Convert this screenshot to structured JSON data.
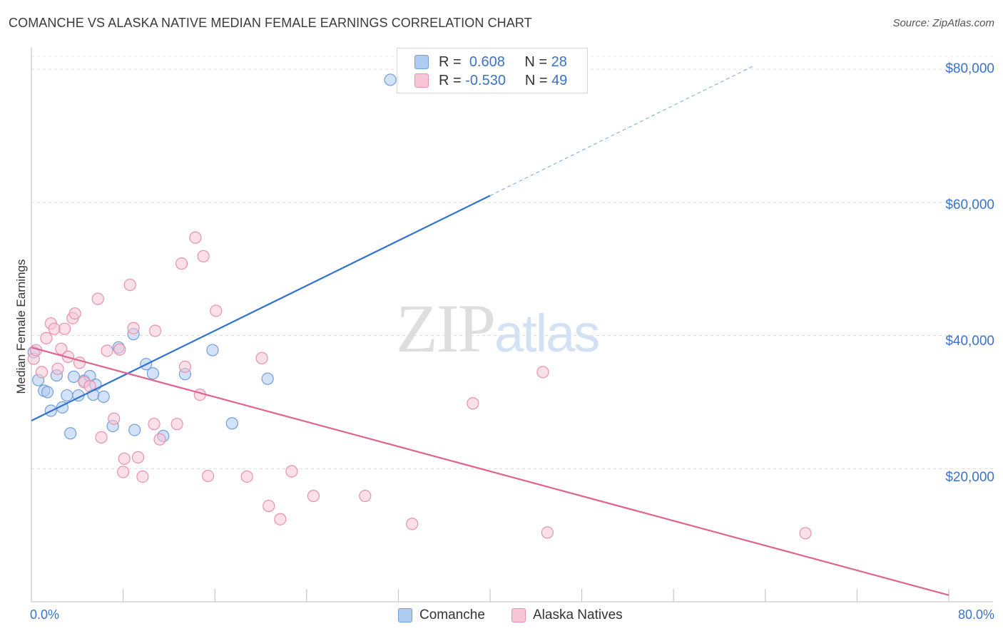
{
  "title": "COMANCHE VS ALASKA NATIVE MEDIAN FEMALE EARNINGS CORRELATION CHART",
  "source": "Source: ZipAtlas.com",
  "watermark": {
    "zip": "ZIP",
    "atlas": "atlas"
  },
  "legend": {
    "r_label": "R =",
    "n_label": "N =",
    "rows": [
      {
        "r": "0.608",
        "n": "28",
        "color": "#aecbf0",
        "border": "#6f9fe0"
      },
      {
        "r": "-0.530",
        "n": "49",
        "color": "#f8c6d6",
        "border": "#ea8fad"
      }
    ]
  },
  "chart_data": {
    "type": "scatter",
    "title": "COMANCHE VS ALASKA NATIVE MEDIAN FEMALE EARNINGS CORRELATION CHART",
    "xlabel": "",
    "ylabel": "Median Female Earnings",
    "xlim": [
      0,
      80
    ],
    "ylim": [
      0,
      81000
    ],
    "x_tick_labels": [
      "0.0%",
      "80.0%"
    ],
    "y_ticks": [
      20000,
      40000,
      60000,
      80000
    ],
    "y_tick_labels": [
      "$20,000",
      "$40,000",
      "$60,000",
      "$80,000"
    ],
    "grid": true,
    "legend_position": "top-center",
    "series": [
      {
        "name": "Comanche",
        "color": "#6f9fe0",
        "fill": "#aecbf0",
        "points": [
          [
            0.2,
            37500
          ],
          [
            0.6,
            33300
          ],
          [
            1.1,
            31700
          ],
          [
            1.4,
            31500
          ],
          [
            1.7,
            28700
          ],
          [
            2.2,
            34000
          ],
          [
            2.7,
            29200
          ],
          [
            3.1,
            31000
          ],
          [
            3.4,
            25300
          ],
          [
            3.7,
            33800
          ],
          [
            4.1,
            31000
          ],
          [
            4.6,
            33200
          ],
          [
            5.1,
            33900
          ],
          [
            5.4,
            31100
          ],
          [
            5.6,
            32600
          ],
          [
            6.3,
            30800
          ],
          [
            7.1,
            26400
          ],
          [
            7.6,
            38200
          ],
          [
            9.0,
            25800
          ],
          [
            8.9,
            40200
          ],
          [
            10.0,
            35700
          ],
          [
            10.6,
            34300
          ],
          [
            11.5,
            24900
          ],
          [
            13.4,
            34200
          ],
          [
            15.8,
            37800
          ],
          [
            17.5,
            26800
          ],
          [
            20.6,
            33500
          ],
          [
            31.3,
            78400
          ]
        ],
        "trend": {
          "x0": 0,
          "y0": 27200,
          "x1": 40,
          "y1": 61000,
          "dash_to_x": 63,
          "dash_to_y": 80500
        }
      },
      {
        "name": "Alaska Natives",
        "color": "#ea8fad",
        "fill": "#f8c6d6",
        "points": [
          [
            0.2,
            36500
          ],
          [
            0.9,
            34500
          ],
          [
            1.3,
            39600
          ],
          [
            1.7,
            41800
          ],
          [
            2.0,
            41000
          ],
          [
            2.3,
            35000
          ],
          [
            2.6,
            38000
          ],
          [
            2.9,
            41000
          ],
          [
            3.2,
            36800
          ],
          [
            3.6,
            42600
          ],
          [
            3.8,
            43300
          ],
          [
            4.2,
            35900
          ],
          [
            4.6,
            33000
          ],
          [
            5.1,
            32400
          ],
          [
            5.8,
            45500
          ],
          [
            6.1,
            24700
          ],
          [
            6.6,
            37700
          ],
          [
            7.2,
            27500
          ],
          [
            7.7,
            37900
          ],
          [
            8.0,
            19500
          ],
          [
            8.1,
            21500
          ],
          [
            8.6,
            47600
          ],
          [
            8.9,
            41100
          ],
          [
            9.3,
            21700
          ],
          [
            9.7,
            18800
          ],
          [
            10.7,
            26700
          ],
          [
            10.8,
            40700
          ],
          [
            11.2,
            24400
          ],
          [
            12.7,
            26700
          ],
          [
            13.1,
            50800
          ],
          [
            13.4,
            35300
          ],
          [
            14.3,
            54700
          ],
          [
            14.7,
            31100
          ],
          [
            15.0,
            51900
          ],
          [
            15.4,
            18900
          ],
          [
            16.1,
            43700
          ],
          [
            18.8,
            18800
          ],
          [
            20.1,
            36600
          ],
          [
            20.7,
            14400
          ],
          [
            21.7,
            12400
          ],
          [
            22.7,
            19600
          ],
          [
            24.6,
            15900
          ],
          [
            29.1,
            15900
          ],
          [
            33.2,
            11700
          ],
          [
            38.5,
            29800
          ],
          [
            44.6,
            34500
          ],
          [
            45.0,
            10400
          ],
          [
            67.5,
            10300
          ],
          [
            0.4,
            37800
          ]
        ],
        "trend": {
          "x0": 0,
          "y0": 38200,
          "x1": 80,
          "y1": 1000
        }
      }
    ]
  }
}
